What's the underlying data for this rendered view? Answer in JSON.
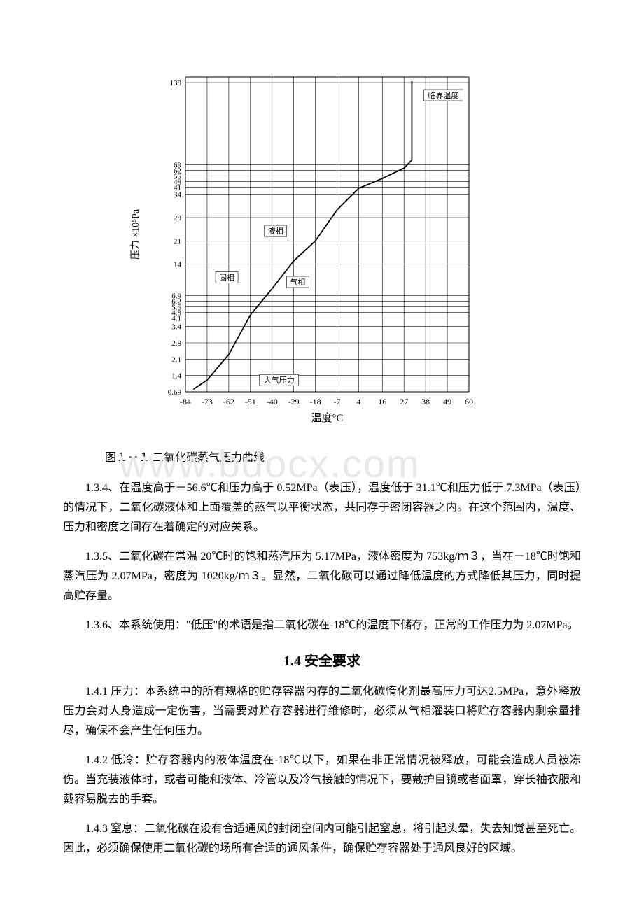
{
  "chart": {
    "type": "line",
    "x_axis": {
      "label": "温度°C",
      "ticks": [
        -84,
        -73,
        -62,
        -51,
        -40,
        -29,
        -18,
        -7,
        4,
        16,
        27,
        38,
        49,
        60
      ],
      "fontsize": 12
    },
    "y_axis": {
      "label": "压力 ×10⁵Pa",
      "ticks_lower": [
        0.69,
        1.4,
        2.1,
        2.8,
        3.4,
        4.1,
        4.8,
        5.5,
        6.2,
        6.9
      ],
      "ticks_upper": [
        14,
        21,
        28,
        34,
        41,
        48,
        55,
        62,
        69
      ],
      "ticks_top": [
        138
      ],
      "fontsize": 12
    },
    "curve": [
      {
        "t": -80,
        "p": 0.8
      },
      {
        "t": -73,
        "p": 1.2
      },
      {
        "t": -62,
        "p": 2.3
      },
      {
        "t": -51,
        "p": 4.5
      },
      {
        "t": -40,
        "p": 8.5
      },
      {
        "t": -29,
        "p": 15
      },
      {
        "t": -18,
        "p": 21
      },
      {
        "t": -7,
        "p": 30
      },
      {
        "t": 4,
        "p": 40
      },
      {
        "t": 16,
        "p": 52
      },
      {
        "t": 27,
        "p": 65
      },
      {
        "t": 31,
        "p": 73
      }
    ],
    "labels": {
      "liquid": "液相",
      "solid": "固相",
      "gas": "气相",
      "atm": "大气压力",
      "critical": "临界温度"
    },
    "colors": {
      "line": "#000000",
      "grid": "#000000",
      "bg": "#ffffff",
      "text": "#000000"
    },
    "line_width": 1.2,
    "grid_width": 0.6
  },
  "caption": "图１－１ 二氧化碳蒸气压力曲线",
  "paragraphs": {
    "p1": "1.3.4、在温度高于－56.6℃和压力高于 0.52MPa（表压），温度低于 31.1℃和压力低于 7.3MPa（表压）的情况下，二氧化碳液体和上面覆盖的蒸气以平衡状态，共同存于密闭容器之内。在这个范围内，温度、压力和密度之间存在着确定的对应关系。",
    "p2": "1.3.5、二氧化碳在常温 20℃时的饱和蒸汽压为 5.17MPa，液体密度为 753kg/ｍ３，当在－18℃时饱和蒸汽压为 2.07MPa，密度为 1020kg/ｍ３。显然，二氧化碳可以通过降低温度的方式降低其压力，同时提高贮存量。",
    "p3": "1.3.6、本系统使用：\"低压\"的术语是指二氧化碳在-18℃的温度下储存，正常的工作压力为 2.07MPa。",
    "h1": "1.4 安全要求",
    "p4": "1.4.1 压力：本系统中的所有规格的贮存容器内存的二氧化碳惰化剂最高压力可达2.5MPa，意外释放压力会对人身造成一定伤害，当需要对贮存容器进行维修时，必须从气相灌装口将贮存容器内剩余量排尽，确保不会产生任何压力。",
    "p5": "1.4.2 低冷：贮存容器内的液体温度在-18℃以下，如果在非正常情况被释放，可能会造成人员被冻伤。当充装液体时，或者可能和液体、冷管以及冷气接触的情况下，要戴护目镜或者面罩，穿长袖衣服和戴容易脱去的手套。",
    "p6": "1.4.3 窒息：二氧化碳在没有合适通风的封闭空间内可能引起窒息，将引起头晕，失去知觉甚至死亡。因此，必须确保使用二氧化碳的场所有合适的通风条件，确保贮存容器处于通风良好的区域。"
  },
  "watermark": "www.bdocx.com"
}
